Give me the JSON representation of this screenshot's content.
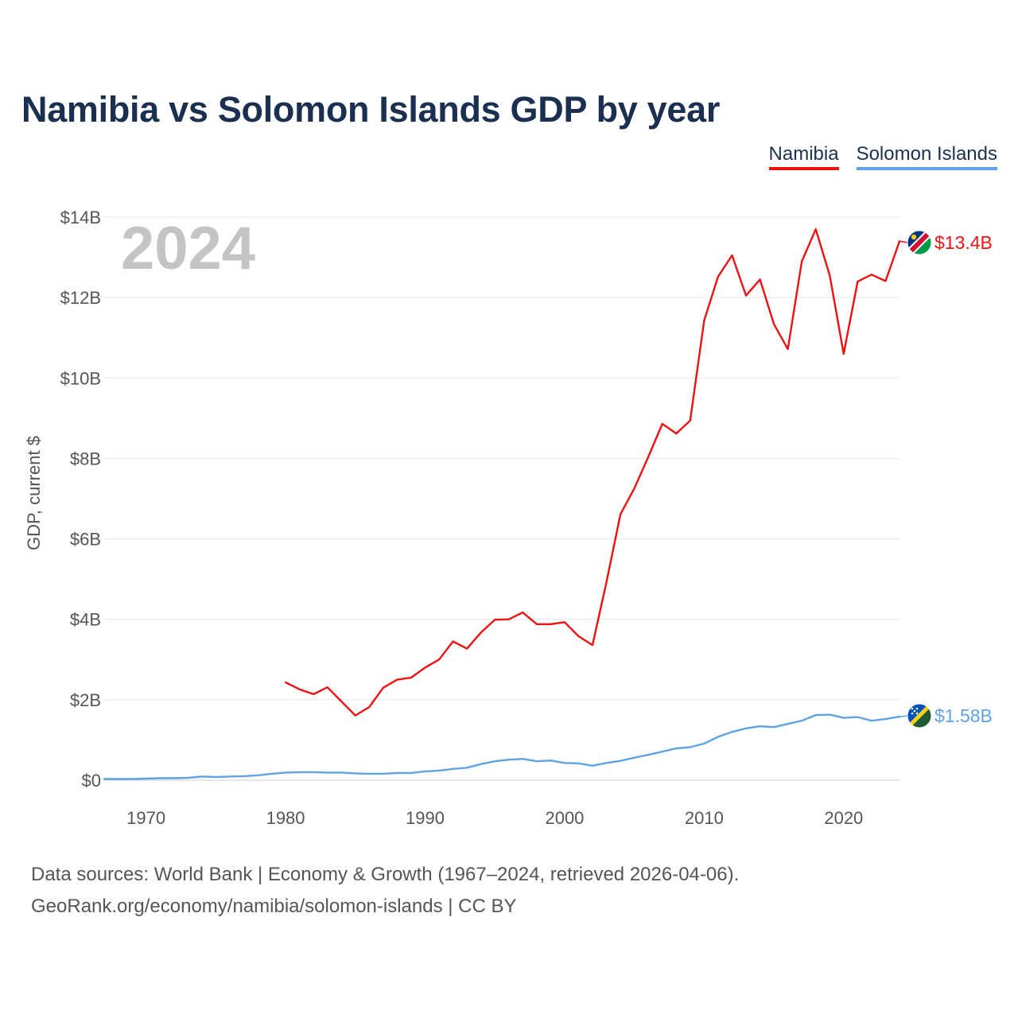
{
  "title": "Namibia vs Solomon Islands GDP by year",
  "legend": [
    {
      "label": "Namibia",
      "color": "#ee1111"
    },
    {
      "label": "Solomon Islands",
      "color": "#5fa3e4"
    }
  ],
  "source": {
    "line1": "Data sources: World Bank | Economy & Growth (1967–2024, retrieved 2026-04-06).",
    "line2": "GeoRank.org/economy/namibia/solomon-islands | CC BY"
  },
  "chart_data": {
    "type": "line",
    "title": "Namibia vs Solomon Islands GDP by year",
    "year_label": "2024",
    "ylabel": "GDP, current $",
    "xlabel": "",
    "xlim": [
      1967,
      2024
    ],
    "ylim": [
      0,
      14
    ],
    "y_unit": "billion USD",
    "yticks": [
      0,
      2,
      4,
      6,
      8,
      10,
      12,
      14
    ],
    "ytick_labels": [
      "$0",
      "$2B",
      "$4B",
      "$6B",
      "$8B",
      "$10B",
      "$12B",
      "$14B"
    ],
    "xticks": [
      1970,
      1980,
      1990,
      2000,
      2010,
      2020
    ],
    "xtick_labels": [
      "1970",
      "1980",
      "1990",
      "2000",
      "2010",
      "2020"
    ],
    "grid": true,
    "legend_position": "top-right",
    "series": [
      {
        "name": "Namibia",
        "color": "#ee1111",
        "end_label": "$13.4B",
        "x": [
          1980,
          1981,
          1982,
          1983,
          1984,
          1985,
          1986,
          1987,
          1988,
          1989,
          1990,
          1991,
          1992,
          1993,
          1994,
          1995,
          1996,
          1997,
          1998,
          1999,
          2000,
          2001,
          2002,
          2003,
          2004,
          2005,
          2006,
          2007,
          2008,
          2009,
          2010,
          2011,
          2012,
          2013,
          2014,
          2015,
          2016,
          2017,
          2018,
          2019,
          2020,
          2021,
          2022,
          2023,
          2024
        ],
        "values": [
          2.43,
          2.26,
          2.14,
          2.31,
          1.96,
          1.61,
          1.82,
          2.3,
          2.5,
          2.55,
          2.8,
          3.0,
          3.45,
          3.27,
          3.67,
          3.99,
          4.0,
          4.17,
          3.88,
          3.88,
          3.93,
          3.58,
          3.36,
          4.93,
          6.61,
          7.26,
          8.04,
          8.86,
          8.62,
          8.94,
          11.43,
          12.52,
          13.05,
          12.05,
          12.45,
          11.34,
          10.72,
          12.9,
          13.7,
          12.55,
          10.6,
          12.4,
          12.57,
          12.41,
          13.4
        ]
      },
      {
        "name": "Solomon Islands",
        "color": "#5fa3e4",
        "end_label": "$1.58B",
        "x": [
          1967,
          1968,
          1969,
          1970,
          1971,
          1972,
          1973,
          1974,
          1975,
          1976,
          1977,
          1978,
          1979,
          1980,
          1981,
          1982,
          1983,
          1984,
          1985,
          1986,
          1987,
          1988,
          1989,
          1990,
          1991,
          1992,
          1993,
          1994,
          1995,
          1996,
          1997,
          1998,
          1999,
          2000,
          2001,
          2002,
          2003,
          2004,
          2005,
          2006,
          2007,
          2008,
          2009,
          2010,
          2011,
          2012,
          2013,
          2014,
          2015,
          2016,
          2017,
          2018,
          2019,
          2020,
          2021,
          2022,
          2023,
          2024
        ],
        "values": [
          0.03,
          0.03,
          0.03,
          0.04,
          0.05,
          0.05,
          0.06,
          0.09,
          0.08,
          0.09,
          0.1,
          0.12,
          0.16,
          0.19,
          0.2,
          0.2,
          0.19,
          0.19,
          0.17,
          0.16,
          0.16,
          0.18,
          0.18,
          0.22,
          0.24,
          0.28,
          0.31,
          0.4,
          0.47,
          0.51,
          0.53,
          0.47,
          0.49,
          0.43,
          0.42,
          0.36,
          0.43,
          0.48,
          0.56,
          0.63,
          0.71,
          0.79,
          0.82,
          0.91,
          1.08,
          1.2,
          1.29,
          1.34,
          1.32,
          1.4,
          1.48,
          1.62,
          1.63,
          1.55,
          1.57,
          1.48,
          1.52,
          1.58
        ]
      }
    ]
  }
}
